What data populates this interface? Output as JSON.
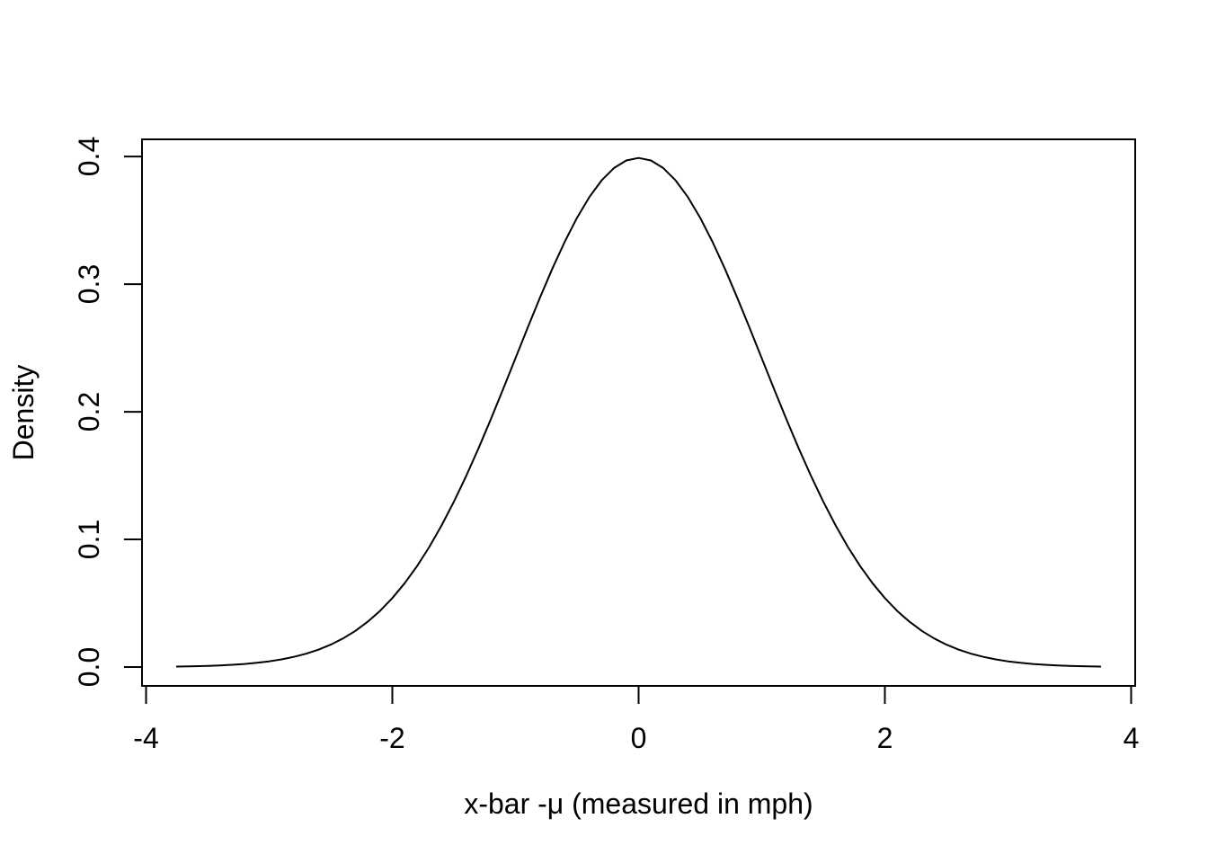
{
  "chart_data": {
    "type": "line",
    "title": "",
    "xlabel": "x-bar -μ (measured in mph)",
    "ylabel": "Density",
    "line_color": "#000000",
    "background_color": "#ffffff",
    "grid": false,
    "legend": null,
    "xlim": [
      -4.033,
      4.033
    ],
    "ylim": [
      -0.0148,
      0.4135
    ],
    "x_ticks": {
      "values": [
        -4,
        -2,
        0,
        2,
        4
      ],
      "labels": [
        "-4",
        "-2",
        "0",
        "2",
        "4"
      ]
    },
    "y_ticks": {
      "values": [
        0.0,
        0.1,
        0.2,
        0.3,
        0.4
      ],
      "labels": [
        "0.0",
        "0.1",
        "0.2",
        "0.3",
        "0.4"
      ]
    },
    "x": [
      -3.75,
      -3.7,
      -3.6,
      -3.5,
      -3.4,
      -3.3,
      -3.2,
      -3.1,
      -3.0,
      -2.9,
      -2.8,
      -2.7,
      -2.6,
      -2.5,
      -2.4,
      -2.3,
      -2.2,
      -2.1,
      -2.0,
      -1.9,
      -1.8,
      -1.7,
      -1.6,
      -1.5,
      -1.4,
      -1.3,
      -1.2,
      -1.1,
      -1.0,
      -0.9,
      -0.8,
      -0.7,
      -0.6,
      -0.5,
      -0.4,
      -0.3,
      -0.2,
      -0.1,
      0.0,
      0.1,
      0.2,
      0.3,
      0.4,
      0.5,
      0.6,
      0.7,
      0.8,
      0.9,
      1.0,
      1.1,
      1.2,
      1.3,
      1.4,
      1.5,
      1.6,
      1.7,
      1.8,
      1.9,
      2.0,
      2.1,
      2.2,
      2.3,
      2.4,
      2.5,
      2.6,
      2.7,
      2.8,
      2.9,
      3.0,
      3.1,
      3.2,
      3.3,
      3.4,
      3.5,
      3.6,
      3.7,
      3.75
    ],
    "y": [
      0.00035,
      0.00042,
      0.00061,
      0.00087,
      0.00123,
      0.00172,
      0.00238,
      0.00327,
      0.00443,
      0.00595,
      0.00792,
      0.01042,
      0.01358,
      0.01753,
      0.02239,
      0.02833,
      0.03547,
      0.04398,
      0.05399,
      0.06562,
      0.07895,
      0.09405,
      0.11092,
      0.12952,
      0.14973,
      0.17137,
      0.19419,
      0.21785,
      0.24197,
      0.26609,
      0.28969,
      0.31225,
      0.33322,
      0.35207,
      0.36827,
      0.38139,
      0.39104,
      0.39695,
      0.39894,
      0.39695,
      0.39104,
      0.38139,
      0.36827,
      0.35207,
      0.33322,
      0.31225,
      0.28969,
      0.26609,
      0.24197,
      0.21785,
      0.19419,
      0.17137,
      0.14973,
      0.12952,
      0.11092,
      0.09405,
      0.07895,
      0.06562,
      0.05399,
      0.04398,
      0.03547,
      0.02833,
      0.02239,
      0.01753,
      0.01358,
      0.01042,
      0.00792,
      0.00595,
      0.00443,
      0.00327,
      0.00238,
      0.00172,
      0.00123,
      0.00087,
      0.00061,
      0.00042,
      0.00035
    ]
  }
}
